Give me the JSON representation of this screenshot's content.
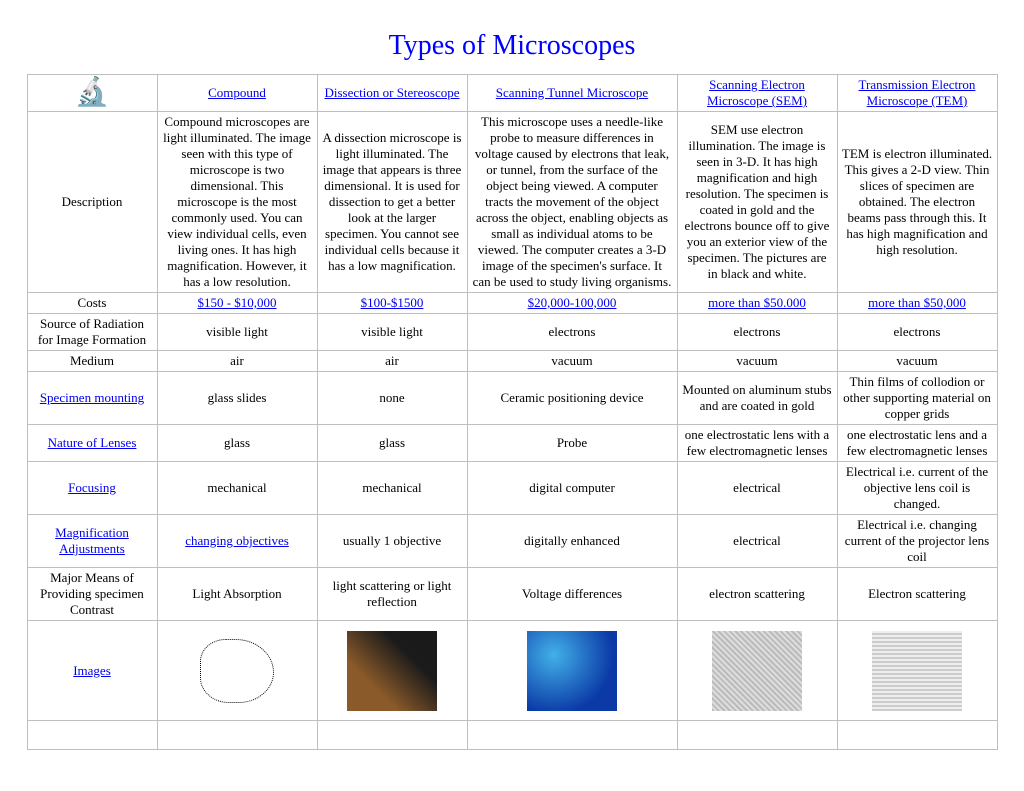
{
  "page": {
    "title": "Types of Microscopes"
  },
  "columns": {
    "compound": "Compound",
    "dissection": "Dissection or Stereoscope",
    "stm": "Scanning Tunnel Microscope",
    "sem": "Scanning Electron Microscope (SEM)",
    "tem": "Transmission Electron Microscope (TEM)"
  },
  "rows": {
    "description": {
      "label": "Description",
      "compound": "Compound microscopes are light illuminated. The image seen with this type of microscope is two dimensional. This microscope is the most commonly used. You can view individual cells, even living ones. It has high magnification. However, it has a low resolution.",
      "dissection": "A dissection microscope is light illuminated. The image that appears is three dimensional. It is used for dissection to get a better look at the larger specimen. You cannot see individual cells because it has a low magnification.",
      "stm": "This microscope uses a needle-like probe to measure differences in voltage caused by electrons that leak, or tunnel, from the surface of the object being viewed. A computer tracts the movement of the object across the object, enabling objects as small as individual atoms to be viewed. The computer creates a 3-D image of the specimen's surface. It can be used to study living organisms.",
      "sem": "SEM use electron illumination. The image is seen in 3-D. It has high magnification and high resolution. The specimen is coated in gold and the electrons bounce off to give you an exterior view of the specimen. The pictures are in black and white.",
      "tem": "TEM is electron illuminated. This gives a 2-D view. Thin slices of specimen are obtained. The electron beams pass through this. It has high magnification and high resolution."
    },
    "costs": {
      "label": "Costs",
      "compound": "$150 - $10,000",
      "dissection": "$100-$1500",
      "stm": "$20,000-100,000",
      "sem": "more than $50.000",
      "tem": "more than $50,000"
    },
    "radiation": {
      "label": "Source of Radiation for Image Formation",
      "compound": "visible light",
      "dissection": "visible light",
      "stm": "electrons",
      "sem": "electrons",
      "tem": "electrons"
    },
    "medium": {
      "label": "Medium",
      "compound": "air",
      "dissection": "air",
      "stm": "vacuum",
      "sem": "vacuum",
      "tem": "vacuum"
    },
    "mounting": {
      "label": "Specimen mounting",
      "compound": "glass slides",
      "dissection": "none",
      "stm": "Ceramic positioning device",
      "sem": "Mounted on aluminum stubs and are coated in gold",
      "tem": "Thin films of collodion or other supporting material on copper grids"
    },
    "lenses": {
      "label": "Nature of Lenses",
      "compound": "glass",
      "dissection": "glass",
      "stm": "Probe",
      "sem": "one electrostatic lens with a few electromagnetic lenses",
      "tem": "one electrostatic lens and a few electromagnetic lenses"
    },
    "focusing": {
      "label": "Focusing",
      "compound": "mechanical",
      "dissection": "mechanical",
      "stm": "digital computer",
      "sem": "electrical",
      "tem": "Electrical i.e. current of the objective lens coil is changed."
    },
    "magnification": {
      "label": "Magnification Adjustments",
      "compound": "changing objectives",
      "dissection": "usually 1 objective",
      "stm": "digitally enhanced",
      "sem": "electrical",
      "tem": "Electrical i.e. changing current of the projector lens coil"
    },
    "contrast": {
      "label": "Major Means of Providing specimen Contrast",
      "compound": "Light Absorption",
      "dissection": "light scattering or light reflection",
      "stm": "Voltage differences",
      "sem": "electron scattering",
      "tem": "Electron scattering"
    },
    "images": {
      "label": "Images"
    }
  }
}
